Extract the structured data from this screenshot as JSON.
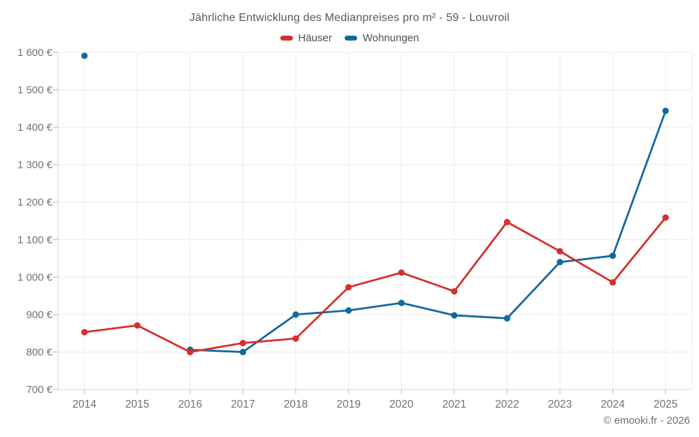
{
  "title": "Jährliche Entwicklung des Medianpreises pro m² - 59 - Louvroil",
  "footer": {
    "copyright": "© emooki.fr - 2026"
  },
  "colors": {
    "haeuser": "#d62f2c",
    "wohnungen": "#13699e",
    "grid": "#ebebeb",
    "axis": "#d6d6d6",
    "tick": "#b3b3b3",
    "axis_text": "#6f7276"
  },
  "chart_data": {
    "type": "line",
    "title": "Jährliche Entwicklung des Medianpreises pro m² - 59 - Louvroil",
    "categories": [
      "2014",
      "2015",
      "2016",
      "2017",
      "2018",
      "2019",
      "2020",
      "2021",
      "2022",
      "2023",
      "2024",
      "2025"
    ],
    "series": [
      {
        "name": "Häuser",
        "color": "#d62f2c",
        "values": [
          853,
          871,
          800,
          824,
          836,
          973,
          1012,
          962,
          1147,
          1069,
          986,
          1159
        ]
      },
      {
        "name": "Wohnungen",
        "color": "#13699e",
        "values": [
          1591,
          null,
          806,
          800,
          900,
          911,
          931,
          898,
          890,
          1040,
          1057,
          1444
        ]
      }
    ],
    "xlabel": "",
    "ylabel": "",
    "ylim": [
      700,
      1600
    ],
    "ytick_step": 100,
    "ytick_suffix": " €",
    "grid": true,
    "legend_position": "top",
    "footnote": "© emooki.fr - 2026"
  }
}
